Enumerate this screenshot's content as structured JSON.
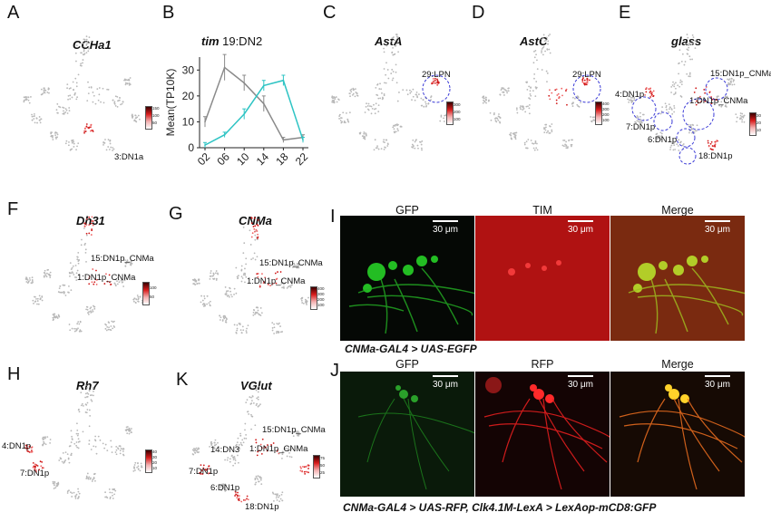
{
  "panel_letters": {
    "A": "A",
    "B": "B",
    "C": "C",
    "D": "D",
    "E": "E",
    "F": "F",
    "G": "G",
    "H": "H",
    "I": "I",
    "J": "J",
    "K": "K"
  },
  "gene_titles": {
    "A": "CCHa1",
    "C": "AstA",
    "D": "AstC",
    "E": "glass",
    "F": "Dh31",
    "G": "CNMa",
    "H": "Rh7",
    "K": "VGlut"
  },
  "cluster_labels": {
    "A": [
      "3:DN1a"
    ],
    "C": [
      "29:LPN"
    ],
    "D": [
      "29:LPN"
    ],
    "E": [
      "15:DN1p_CNMa",
      "4:DN1p",
      "1:DN1p_CNMa",
      "7:DN1p",
      "6:DN1p",
      "18:DN1p"
    ],
    "F": [
      "15:DN1p_CNMa",
      "1:DN1p_CNMa"
    ],
    "G": [
      "15:DN1p_CNMa",
      "1:DN1p_CNMa"
    ],
    "H": [
      "4:DN1p",
      "7:DN1p"
    ],
    "K": [
      "15:DN1p_CNMa",
      "14:DN3",
      "1:DN1p_CNMa",
      "7:DN1p",
      "6:DN1p",
      "18:DN1p"
    ]
  },
  "colorbar_ticks": {
    "A": [
      "150",
      "100",
      "50"
    ],
    "C": [
      "300",
      "200",
      "100"
    ],
    "D": [
      "400",
      "300",
      "200",
      "100"
    ],
    "E": [
      "30",
      "20",
      "10"
    ],
    "F": [
      "100",
      "50"
    ],
    "G": [
      "400",
      "300",
      "200",
      "100"
    ],
    "H": [
      "40",
      "30",
      "20",
      "10"
    ],
    "K": [
      "75",
      "50",
      "25"
    ]
  },
  "panel_B": {
    "title_italic": "tim",
    "title_rest": " 19:DN2",
    "ylabel": "Mean(TP10K)"
  },
  "chart_data": {
    "type": "line",
    "title": "tim 19:DN2",
    "xlabel": "",
    "ylabel": "Mean(TP10K)",
    "categories": [
      "02",
      "06",
      "10",
      "14",
      "18",
      "22"
    ],
    "ylim": [
      0,
      35
    ],
    "yticks": [
      0,
      10,
      20,
      30
    ],
    "series": [
      {
        "color": "#8a8a8a",
        "values": [
          10,
          31,
          25,
          17,
          3,
          4
        ],
        "errors": [
          2,
          5,
          3,
          3,
          1,
          1
        ]
      },
      {
        "color": "#2ec4c4",
        "values": [
          1,
          5,
          13,
          24,
          26,
          3
        ],
        "errors": [
          1,
          1,
          2,
          2,
          2,
          1
        ]
      }
    ]
  },
  "panel_I": {
    "titles": [
      "GFP",
      "TIM",
      "Merge"
    ],
    "scale": "30 μm",
    "caption": "CNMa-GAL4 > UAS-EGFP"
  },
  "panel_J": {
    "titles": [
      "GFP",
      "RFP",
      "Merge"
    ],
    "scale": "30 μm",
    "caption": "CNMa-GAL4 > UAS-RFP, Clk4.1M-LexA > LexAop-mCD8:GFP"
  }
}
